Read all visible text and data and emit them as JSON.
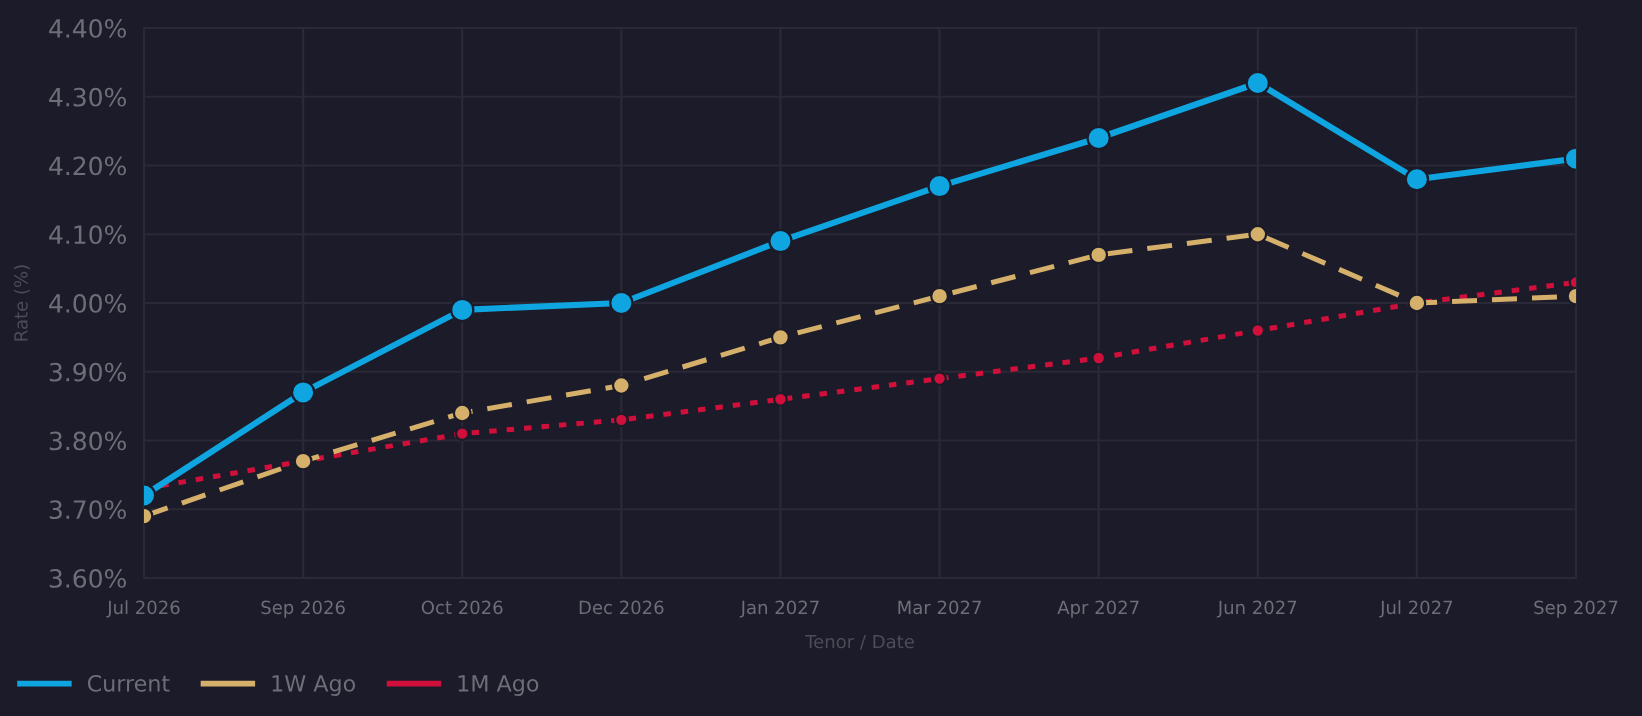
{
  "chart_data": {
    "type": "line",
    "categories": [
      "Jul 2026",
      "Sep 2026",
      "Oct 2026",
      "Dec 2026",
      "Jan 2027",
      "Mar 2027",
      "Apr 2027",
      "Jun 2027",
      "Jul 2027",
      "Sep 2027"
    ],
    "xlabel": "Tenor / Date",
    "ylabel": "Rate (%)",
    "ylim": [
      3.6,
      4.4
    ],
    "yticks": [
      {
        "value": 3.6,
        "label": "3.60%"
      },
      {
        "value": 3.7,
        "label": "3.70%"
      },
      {
        "value": 3.8,
        "label": "3.80%"
      },
      {
        "value": 3.9,
        "label": "3.90%"
      },
      {
        "value": 4.0,
        "label": "4.00%"
      },
      {
        "value": 4.1,
        "label": "4.10%"
      },
      {
        "value": 4.2,
        "label": "4.20%"
      },
      {
        "value": 4.3,
        "label": "4.30%"
      },
      {
        "value": 4.4,
        "label": "4.40%"
      }
    ],
    "grid": true,
    "legend": "bottom left",
    "marker": "circle",
    "series": [
      {
        "name": "Current",
        "color": "#0ea5e0",
        "line_style": "solid",
        "values": [
          3.72,
          3.87,
          3.99,
          4.0,
          4.09,
          4.17,
          4.24,
          4.32,
          4.18,
          4.21
        ]
      },
      {
        "name": "1W Ago",
        "color": "#d4b06a",
        "line_style": "dashed",
        "values": [
          3.69,
          3.77,
          3.84,
          3.88,
          3.95,
          4.01,
          4.07,
          4.1,
          4.0,
          4.01
        ]
      },
      {
        "name": "1M Ago",
        "color": "#d0103a",
        "line_style": "dotted",
        "values": [
          3.73,
          3.77,
          3.81,
          3.83,
          3.86,
          3.89,
          3.92,
          3.96,
          4.0,
          4.03
        ]
      }
    ]
  }
}
